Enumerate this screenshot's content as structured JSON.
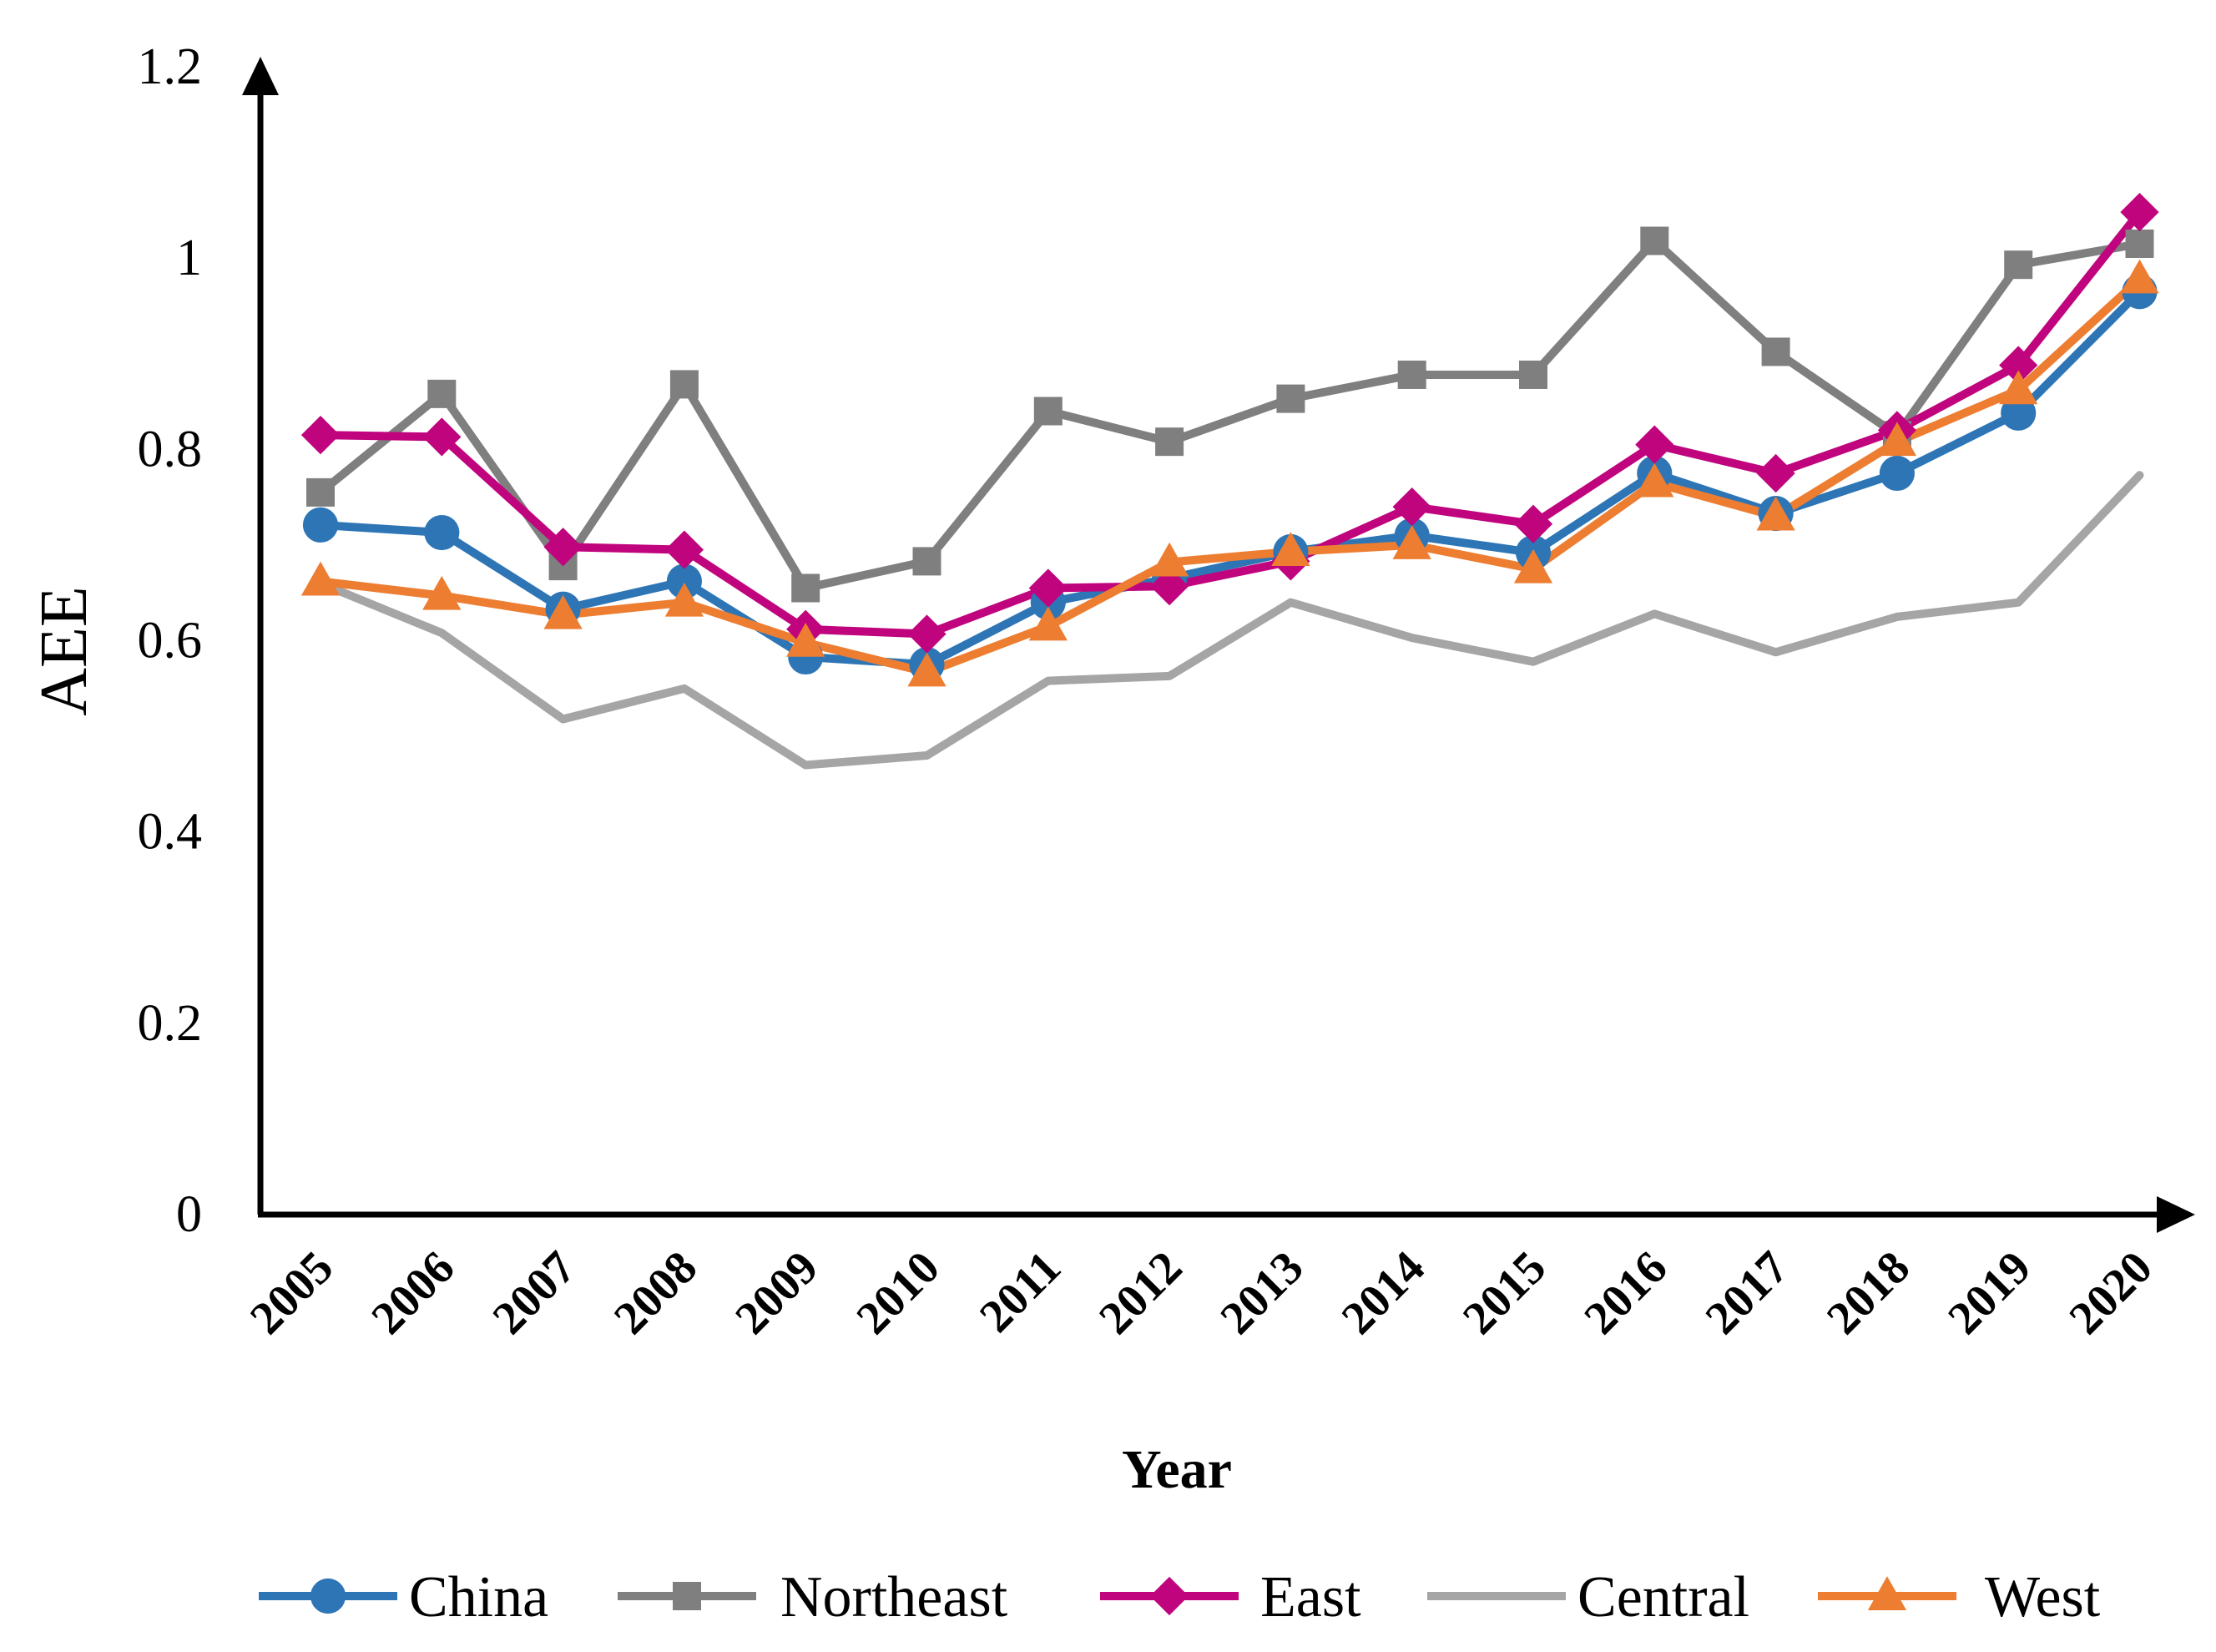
{
  "chart_data": {
    "type": "line",
    "title": "",
    "xlabel": "Year",
    "ylabel": "AEE",
    "ylim": [
      0,
      1.2
    ],
    "y_ticks": [
      "0",
      "0.2",
      "0.4",
      "0.6",
      "0.8",
      "1",
      "1.2"
    ],
    "y_tick_values": [
      0,
      0.2,
      0.4,
      0.6,
      0.8,
      1.0,
      1.2
    ],
    "categories": [
      "2005",
      "2006",
      "2007",
      "2008",
      "2009",
      "2010",
      "2011",
      "2012",
      "2013",
      "2014",
      "2015",
      "2016",
      "2017",
      "2018",
      "2019",
      "2020"
    ],
    "grid": false,
    "legend_position": "bottom",
    "series": [
      {
        "name": "China",
        "color": "#2E75B6",
        "marker": "circle",
        "values": [
          0.721,
          0.713,
          0.633,
          0.662,
          0.583,
          0.575,
          0.64,
          0.665,
          0.693,
          0.71,
          0.692,
          0.775,
          0.733,
          0.775,
          0.838,
          0.965
        ]
      },
      {
        "name": "Northeast",
        "color": "#7F7F7F",
        "marker": "square",
        "values": [
          0.755,
          0.858,
          0.678,
          0.868,
          0.655,
          0.683,
          0.84,
          0.808,
          0.853,
          0.878,
          0.878,
          1.018,
          0.902,
          0.815,
          0.993,
          1.015
        ]
      },
      {
        "name": "East",
        "color": "#C0047E",
        "marker": "diamond",
        "values": [
          0.815,
          0.813,
          0.698,
          0.695,
          0.612,
          0.607,
          0.655,
          0.657,
          0.683,
          0.74,
          0.722,
          0.805,
          0.775,
          0.82,
          0.888,
          1.048
        ]
      },
      {
        "name": "Central",
        "color": "#A5A5A5",
        "marker": "none",
        "values": [
          0.66,
          0.608,
          0.518,
          0.55,
          0.47,
          0.48,
          0.558,
          0.563,
          0.64,
          0.603,
          0.578,
          0.628,
          0.588,
          0.625,
          0.64,
          0.773
        ]
      },
      {
        "name": "West",
        "color": "#ED7D31",
        "marker": "triangle",
        "values": [
          0.662,
          0.647,
          0.627,
          0.64,
          0.598,
          0.567,
          0.615,
          0.682,
          0.693,
          0.7,
          0.675,
          0.765,
          0.73,
          0.808,
          0.862,
          0.978
        ]
      }
    ]
  }
}
